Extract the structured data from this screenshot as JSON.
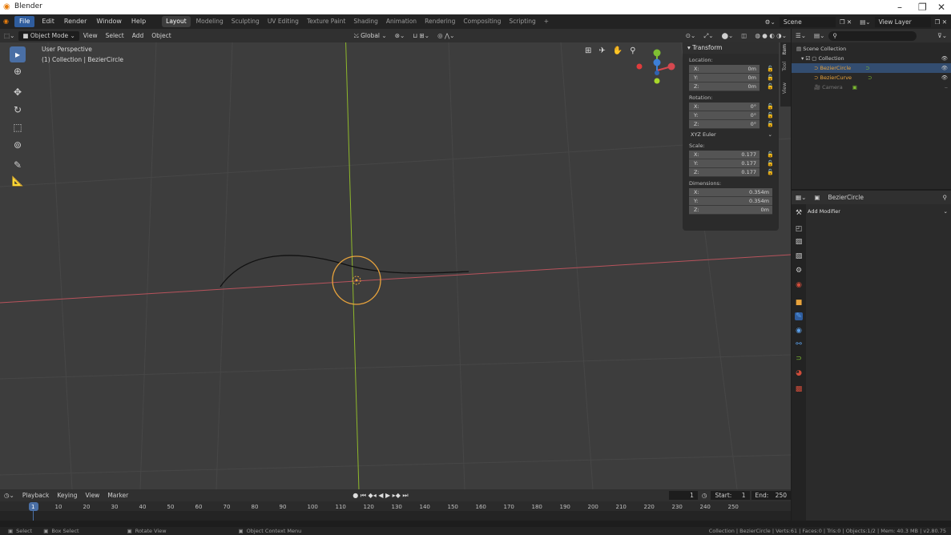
{
  "window": {
    "title": "Blender",
    "logo": "blender-logo",
    "controls": [
      "–",
      "❐",
      "✕"
    ]
  },
  "menu": {
    "items": [
      "File",
      "Edit",
      "Render",
      "Window",
      "Help"
    ]
  },
  "workspaces": [
    "Layout",
    "Modeling",
    "Sculpting",
    "UV Editing",
    "Texture Paint",
    "Shading",
    "Animation",
    "Rendering",
    "Compositing",
    "Scripting",
    "+"
  ],
  "scene": {
    "name": "Scene",
    "view_layer": "View Layer"
  },
  "viewport_header": {
    "mode": "Object Mode",
    "menus": [
      "View",
      "Select",
      "Add",
      "Object"
    ],
    "orientation": "Global"
  },
  "viewport": {
    "perspective": "User Perspective",
    "context": "(1) Collection | BezierCircle"
  },
  "npanel": {
    "title": "Transform",
    "tabs": [
      "Item",
      "Tool",
      "View"
    ],
    "location": {
      "label": "Location:",
      "x": "0m",
      "y": "0m",
      "z": "0m"
    },
    "rotation": {
      "label": "Rotation:",
      "x": "0°",
      "y": "0°",
      "z": "0°"
    },
    "rotation_mode": "XYZ Euler",
    "scale": {
      "label": "Scale:",
      "x": "0.177",
      "y": "0.177",
      "z": "0.177"
    },
    "dimensions": {
      "label": "Dimensions:",
      "x": "0.354m",
      "y": "0.354m",
      "z": "0m"
    },
    "axis": {
      "x": "X:",
      "y": "Y:",
      "z": "Z:"
    }
  },
  "outliner": {
    "root": "Scene Collection",
    "collection": "Collection",
    "objects": [
      "BezierCircle",
      "BezierCurve",
      "Camera"
    ]
  },
  "properties": {
    "object_name": "BezierCircle",
    "add_modifier": "Add Modifier"
  },
  "timeline": {
    "menus": [
      "Playback",
      "Keying",
      "View",
      "Marker"
    ],
    "current_frame": "1",
    "start_label": "Start:",
    "start": "1",
    "end_label": "End:",
    "end": "250",
    "ticks": [
      "1",
      "10",
      "20",
      "30",
      "40",
      "50",
      "60",
      "70",
      "80",
      "90",
      "100",
      "110",
      "120",
      "130",
      "140",
      "150",
      "160",
      "170",
      "180",
      "190",
      "200",
      "210",
      "220",
      "230",
      "240",
      "250"
    ]
  },
  "status": {
    "select": "Select",
    "box_select": "Box Select",
    "rotate_view": "Rotate View",
    "context_menu": "Object Context Menu",
    "info": "Collection | BezierCircle | Verts:61 | Faces:0 | Tris:0 | Objects:1/2 | Mem: 40.3 MB | v2.80.75"
  },
  "colors": {
    "accent": "#2f5d9e",
    "selected": "#e8a33c",
    "x_axis": "#b8535c",
    "y_axis": "#8fb82b"
  }
}
